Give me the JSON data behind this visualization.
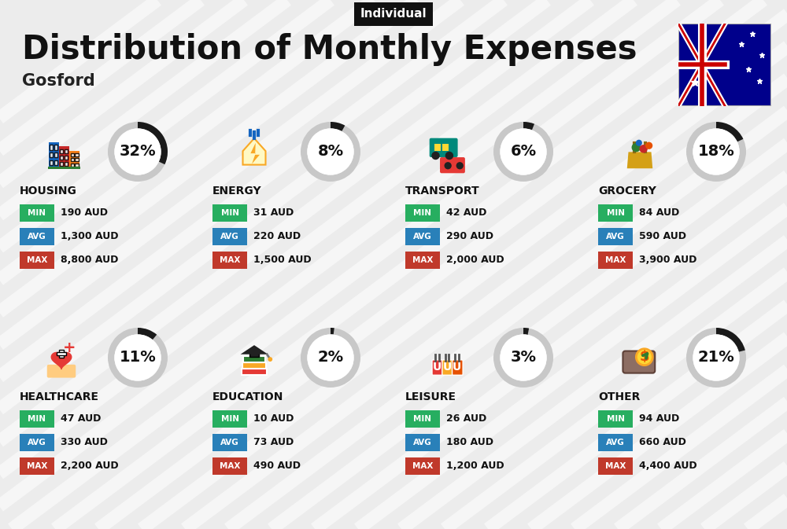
{
  "title": "Distribution of Monthly Expenses",
  "subtitle": "Gosford",
  "tag": "Individual",
  "bg_color": "#ececec",
  "categories": [
    {
      "name": "HOUSING",
      "percent": 32,
      "min": "190 AUD",
      "avg": "1,300 AUD",
      "max": "8,800 AUD"
    },
    {
      "name": "ENERGY",
      "percent": 8,
      "min": "31 AUD",
      "avg": "220 AUD",
      "max": "1,500 AUD"
    },
    {
      "name": "TRANSPORT",
      "percent": 6,
      "min": "42 AUD",
      "avg": "290 AUD",
      "max": "2,000 AUD"
    },
    {
      "name": "GROCERY",
      "percent": 18,
      "min": "84 AUD",
      "avg": "590 AUD",
      "max": "3,900 AUD"
    },
    {
      "name": "HEALTHCARE",
      "percent": 11,
      "min": "47 AUD",
      "avg": "330 AUD",
      "max": "2,200 AUD"
    },
    {
      "name": "EDUCATION",
      "percent": 2,
      "min": "10 AUD",
      "avg": "73 AUD",
      "max": "490 AUD"
    },
    {
      "name": "LEISURE",
      "percent": 3,
      "min": "26 AUD",
      "avg": "180 AUD",
      "max": "1,200 AUD"
    },
    {
      "name": "OTHER",
      "percent": 21,
      "min": "94 AUD",
      "avg": "660 AUD",
      "max": "4,400 AUD"
    }
  ],
  "min_color": "#27ae60",
  "avg_color": "#2980b9",
  "max_color": "#c0392b",
  "ring_filled_color": "#1a1a1a",
  "ring_empty_color": "#c8c8c8",
  "title_color": "#111111",
  "subtitle_color": "#222222",
  "cat_name_color": "#111111",
  "value_color": "#111111",
  "stripe_color": "#ffffff",
  "stripe_alpha": 0.55,
  "stripe_lw": 12,
  "tag_bg": "#111111",
  "tag_fg": "#ffffff"
}
